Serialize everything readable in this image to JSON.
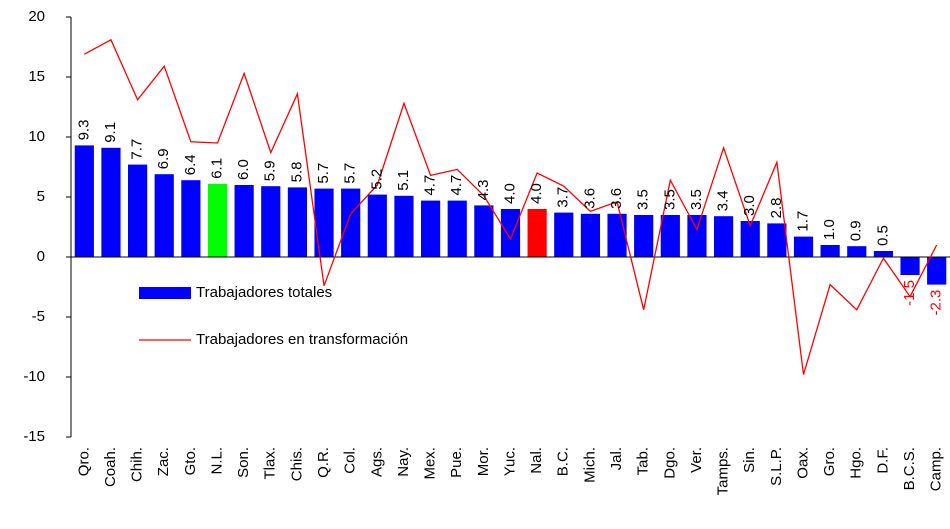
{
  "chart_data": {
    "type": "bar_line",
    "categories": [
      "Qro.",
      "Coah.",
      "Chih.",
      "Zac.",
      "Gto.",
      "N.L.",
      "Son.",
      "Tlax.",
      "Chis.",
      "Q.R.",
      "Col.",
      "Ags.",
      "Nay.",
      "Mex.",
      "Pue.",
      "Mor.",
      "Yuc.",
      "Nal.",
      "B.C.",
      "Mich.",
      "Jal.",
      "Tab.",
      "Dgo.",
      "Ver.",
      "Tamps.",
      "Sin.",
      "S.L.P.",
      "Oax.",
      "Gro.",
      "Hgo.",
      "D.F.",
      "B.C.S.",
      "Camp."
    ],
    "series": [
      {
        "name": "Trabajadores totales",
        "type": "bar",
        "color": "#0000ff",
        "colors": [
          "#0000ff",
          "#0000ff",
          "#0000ff",
          "#0000ff",
          "#0000ff",
          "#00ff00",
          "#0000ff",
          "#0000ff",
          "#0000ff",
          "#0000ff",
          "#0000ff",
          "#0000ff",
          "#0000ff",
          "#0000ff",
          "#0000ff",
          "#0000ff",
          "#0000ff",
          "#ff0000",
          "#0000ff",
          "#0000ff",
          "#0000ff",
          "#0000ff",
          "#0000ff",
          "#0000ff",
          "#0000ff",
          "#0000ff",
          "#0000ff",
          "#0000ff",
          "#0000ff",
          "#0000ff",
          "#0000ff",
          "#0000ff",
          "#0000ff"
        ],
        "values": [
          9.3,
          9.1,
          7.7,
          6.9,
          6.4,
          6.1,
          6.0,
          5.9,
          5.8,
          5.7,
          5.7,
          5.2,
          5.1,
          4.7,
          4.7,
          4.3,
          4.0,
          4.0,
          3.7,
          3.6,
          3.6,
          3.5,
          3.5,
          3.5,
          3.4,
          3.0,
          2.8,
          1.7,
          1.0,
          0.9,
          0.5,
          -1.5,
          -2.3
        ],
        "value_labels": [
          "9.3",
          "9.1",
          "7.7",
          "6.9",
          "6.4",
          "6.1",
          "6.0",
          "5.9",
          "5.8",
          "5.7",
          "5.7",
          "5.2",
          "5.1",
          "4.7",
          "4.7",
          "4.3",
          "4.0",
          "4.0",
          "3.7",
          "3.6",
          "3.6",
          "3.5",
          "3.5",
          "3.5",
          "3.4",
          "3.0",
          "2.8",
          "1.7",
          "1.0",
          "0.9",
          "0.5",
          "-1.5",
          "-2.3"
        ],
        "label_color": "#000000",
        "negative_label_color": "#ff0000"
      },
      {
        "name": "Trabajadores en transformación",
        "type": "line",
        "color": "#ff0000",
        "values": [
          16.9,
          18.1,
          13.1,
          15.9,
          9.6,
          9.5,
          15.3,
          8.7,
          13.6,
          -2.4,
          3.6,
          6.0,
          12.8,
          6.8,
          7.3,
          5.1,
          1.5,
          7.0,
          5.9,
          3.8,
          4.6,
          -4.4,
          6.4,
          2.3,
          9.1,
          2.6,
          7.9,
          -9.8,
          -2.3,
          -4.4,
          -0.1,
          -3.3,
          1.0
        ]
      }
    ],
    "ylim": [
      -15,
      20
    ],
    "yticks": [
      -15,
      -10,
      -5,
      0,
      5,
      10,
      15,
      20
    ],
    "grid": false,
    "legend": "lower left"
  }
}
